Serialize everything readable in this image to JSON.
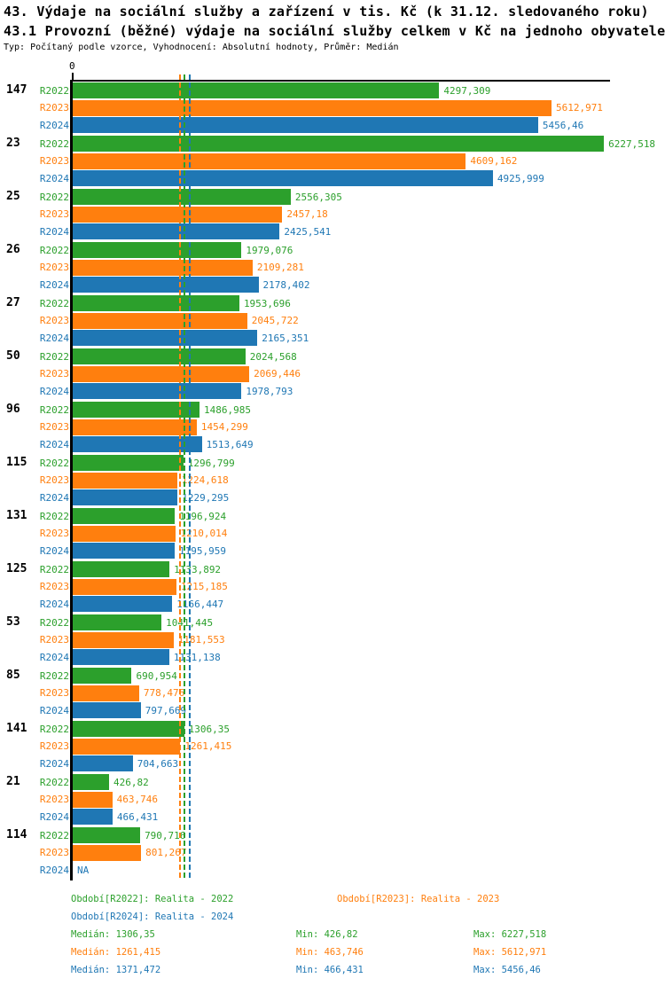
{
  "header": {
    "title1": "43. Výdaje na sociální služby a zařízení v tis. Kč (k 31.12. sledovaného roku)",
    "title2": "43.1 Provozní (běžné) výdaje na sociální služby celkem v Kč na jednoho obyvatele",
    "meta": "Typ: Počítaný podle vzorce, Vyhodnocení: Absolutní hodnoty, Průměr: Medián"
  },
  "colors": {
    "r2022": "#2ca02c",
    "r2023": "#ff7f0e",
    "r2024": "#1f77b4",
    "axis": "#000000"
  },
  "chart_data": {
    "type": "bar",
    "orientation": "horizontal",
    "title": "43. Výdaje na sociální služby a zařízení v tis. Kč (k 31.12. sledovaného roku)",
    "subtitle": "43.1 Provozní (běžné) výdaje na sociální služby celkem v Kč na jednoho obyvatele",
    "axis_origin_label": "0",
    "xlim": [
      0,
      6320
    ],
    "grid": false,
    "categories": [
      "147",
      "23",
      "25",
      "26",
      "27",
      "50",
      "96",
      "115",
      "131",
      "125",
      "53",
      "85",
      "141",
      "21",
      "114"
    ],
    "series": [
      {
        "name": "R2022",
        "color": "#2ca02c",
        "values": [
          4297.309,
          6227.518,
          2556.305,
          1979.076,
          1953.696,
          2024.568,
          1486.985,
          1296.799,
          1196.924,
          1133.892,
          1041.445,
          690.954,
          1306.35,
          426.82,
          790.716
        ],
        "labels": [
          "4297,309",
          "6227,518",
          "2556,305",
          "1979,076",
          "1953,696",
          "2024,568",
          "1486,985",
          "1296,799",
          "1196,924",
          "1133,892",
          "1041,445",
          "690,954",
          "1306,35",
          "426,82",
          "790,716"
        ]
      },
      {
        "name": "R2023",
        "color": "#ff7f0e",
        "values": [
          5612.971,
          4609.162,
          2457.18,
          2109.281,
          2045.722,
          2069.446,
          1454.299,
          1224.618,
          1210.014,
          1215.185,
          1181.553,
          778.476,
          1261.415,
          463.746,
          801.267
        ],
        "labels": [
          "5612,971",
          "4609,162",
          "2457,18",
          "2109,281",
          "2045,722",
          "2069,446",
          "1454,299",
          "1224,618",
          "1210,014",
          "1215,185",
          "1181,553",
          "778,476",
          "1261,415",
          "463,746",
          "801,267"
        ]
      },
      {
        "name": "R2024",
        "color": "#1f77b4",
        "values": [
          5456.46,
          4925.999,
          2425.541,
          2178.402,
          2165.351,
          1978.793,
          1513.649,
          1229.295,
          1195.959,
          1166.447,
          1131.138,
          797.669,
          704.663,
          466.431,
          null
        ],
        "labels": [
          "5456,46",
          "4925,999",
          "2425,541",
          "2178,402",
          "2165,351",
          "1978,793",
          "1513,649",
          "1229,295",
          "1195,959",
          "1166,447",
          "1131,138",
          "797,669",
          "704,663",
          "466,431",
          "NA"
        ]
      }
    ],
    "median_lines": [
      {
        "series": "R2023",
        "value": 1261.415,
        "color": "#ff7f0e"
      },
      {
        "series": "R2022",
        "value": 1306.35,
        "color": "#2ca02c"
      },
      {
        "series": "R2024",
        "value": 1371.472,
        "color": "#1f77b4"
      }
    ]
  },
  "legend": {
    "periods": [
      {
        "label": "Období[R2022]: Realita - 2022",
        "color": "#2ca02c",
        "col": 0,
        "row": 0
      },
      {
        "label": "Období[R2023]: Realita - 2023",
        "color": "#ff7f0e",
        "col": 1,
        "row": 0
      },
      {
        "label": "Období[R2024]: Realita - 2024",
        "color": "#1f77b4",
        "col": 0,
        "row": 1
      }
    ],
    "stats": [
      {
        "median": "Medián: 1306,35",
        "min": "Min: 426,82",
        "max": "Max: 6227,518",
        "color": "#2ca02c"
      },
      {
        "median": "Medián: 1261,415",
        "min": "Min: 463,746",
        "max": "Max: 5612,971",
        "color": "#ff7f0e"
      },
      {
        "median": "Medián: 1371,472",
        "min": "Min: 466,431",
        "max": "Max: 5456,46",
        "color": "#1f77b4"
      }
    ]
  }
}
